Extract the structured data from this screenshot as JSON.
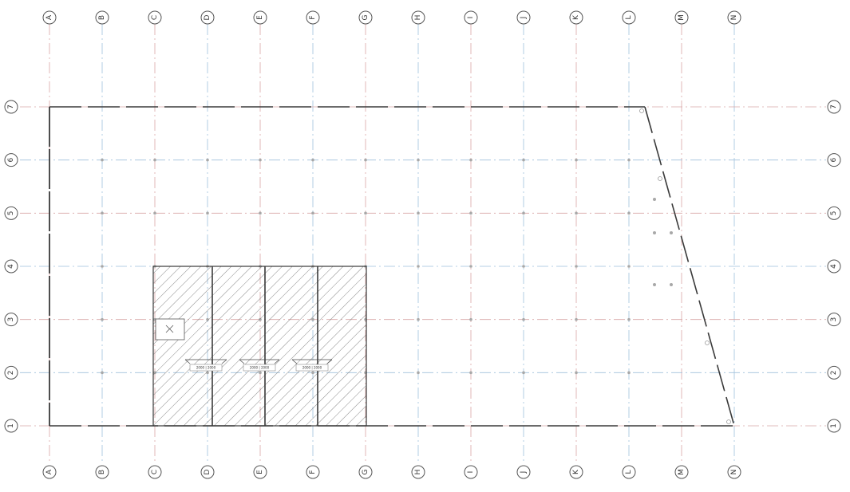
{
  "drawing": {
    "column_grids": [
      "A",
      "B",
      "C",
      "D",
      "E",
      "F",
      "G",
      "H",
      "I",
      "J",
      "K",
      "L",
      "M",
      "N"
    ],
    "row_grids": [
      "7",
      "6",
      "5",
      "4",
      "3",
      "2",
      "1"
    ],
    "hatched_area": {
      "from_grid": "C",
      "to_grid": "G",
      "from_row": "1",
      "to_row": "4",
      "bays": 4
    },
    "dimension_labels": [
      "2000 | 2000",
      "2000 | 2000",
      "2000 | 2000"
    ],
    "colors": {
      "outline": "#3a3a3a",
      "gridline_primary": "#d9a6a6",
      "gridline_secondary": "#9fc0dc",
      "hatch": "#6a6a6a"
    }
  }
}
